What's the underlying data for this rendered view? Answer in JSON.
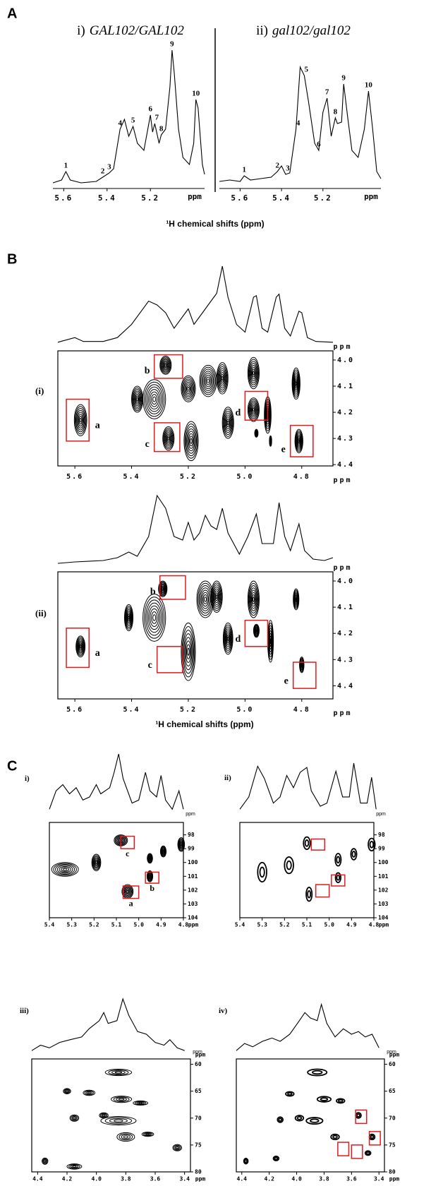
{
  "panel_labels": [
    "A",
    "B",
    "C"
  ],
  "xlabels": [
    "¹H chemical shifts (ppm)",
    "¹H chemical shifts (ppm)"
  ],
  "chart_data": [
    {
      "type": "line",
      "label": "i)",
      "title": "GAL102/GAL102",
      "x": [
        5.65,
        5.61,
        5.59,
        5.57,
        5.52,
        5.45,
        5.42,
        5.39,
        5.37,
        5.34,
        5.32,
        5.3,
        5.28,
        5.26,
        5.23,
        5.2,
        5.19,
        5.18,
        5.16,
        5.15,
        5.13,
        5.11,
        5.1,
        5.09,
        5.07,
        5.05,
        5.02,
        5.0,
        4.99,
        4.98,
        4.96,
        4.95
      ],
      "values": [
        2,
        4,
        10,
        4,
        2,
        3,
        6,
        9,
        12,
        40,
        47,
        35,
        42,
        30,
        25,
        50,
        38,
        44,
        30,
        36,
        40,
        70,
        96,
        80,
        40,
        20,
        15,
        30,
        61,
        55,
        15,
        8
      ],
      "xlim": [
        5.65,
        4.95
      ],
      "ylim": [
        0,
        100
      ],
      "xticks": [
        5.6,
        5.4,
        5.2
      ],
      "xunit": "ppm",
      "peaks": {
        "x": [
          5.59,
          5.42,
          5.39,
          5.34,
          5.28,
          5.2,
          5.17,
          5.15,
          5.1,
          4.99
        ],
        "labels": [
          1,
          2,
          3,
          4,
          5,
          6,
          7,
          8,
          9,
          10
        ]
      }
    },
    {
      "type": "line",
      "label": "ii)",
      "title": "gal102/gal102",
      "x": [
        5.7,
        5.65,
        5.6,
        5.58,
        5.55,
        5.5,
        5.45,
        5.42,
        5.4,
        5.38,
        5.36,
        5.33,
        5.31,
        5.29,
        5.27,
        5.24,
        5.22,
        5.2,
        5.18,
        5.16,
        5.14,
        5.13,
        5.11,
        5.1,
        5.08,
        5.06,
        5.03,
        5.0,
        4.98,
        4.96,
        4.94,
        4.92
      ],
      "values": [
        3,
        4,
        3,
        7,
        4,
        5,
        6,
        10,
        14,
        8,
        9,
        40,
        84,
        78,
        60,
        30,
        25,
        52,
        62,
        35,
        48,
        44,
        45,
        72,
        48,
        25,
        20,
        40,
        67,
        40,
        10,
        5
      ],
      "xlim": [
        5.7,
        4.92
      ],
      "ylim": [
        0,
        100
      ],
      "xticks": [
        5.6,
        5.4,
        5.2
      ],
      "xunit": "ppm",
      "peaks": {
        "x": [
          5.58,
          5.42,
          5.37,
          5.32,
          5.28,
          5.22,
          5.18,
          5.14,
          5.1,
          4.98
        ],
        "labels": [
          1,
          2,
          3,
          4,
          5,
          6,
          7,
          8,
          9,
          10
        ]
      }
    },
    {
      "type": "line",
      "x": [
        5.66,
        5.6,
        5.57,
        5.5,
        5.45,
        5.4,
        5.34,
        5.31,
        5.28,
        5.25,
        5.21,
        5.2,
        5.18,
        5.15,
        5.13,
        5.1,
        5.08,
        5.06,
        5.03,
        5.0,
        4.97,
        4.96,
        4.94,
        4.92,
        4.89,
        4.88,
        4.86,
        4.84,
        4.81,
        4.8,
        4.78,
        4.75,
        4.69
      ],
      "values": [
        2,
        8,
        3,
        3,
        8,
        25,
        55,
        50,
        40,
        20,
        40,
        45,
        25,
        40,
        50,
        65,
        100,
        60,
        25,
        15,
        60,
        62,
        20,
        15,
        60,
        64,
        20,
        10,
        42,
        40,
        8,
        3,
        2
      ],
      "xlim": [
        5.66,
        4.69
      ],
      "ylim": [
        0,
        100
      ]
    },
    {
      "type": "contour",
      "label": "(i)",
      "xlim": [
        5.66,
        4.69
      ],
      "ylim": [
        3.965,
        4.405
      ],
      "xticks": [
        5.6,
        5.4,
        5.2,
        {
          "value": 5,
          "label": "5.0"
        },
        4.8
      ],
      "yticks": [
        {
          "value": 4,
          "label": "4.0"
        },
        4.1,
        4.2,
        4.3,
        4.4
      ],
      "xunit": "ppm",
      "yunit": "ppm",
      "levels": 8,
      "peaks": {
        "x": [
          5.58,
          5.38,
          5.32,
          5.28,
          5.27,
          5.2,
          5.19,
          5.13,
          5.08,
          5.06,
          4.97,
          4.97,
          4.92,
          4.96,
          4.91,
          4.82,
          4.81
        ],
        "y": [
          4.23,
          4.15,
          4.15,
          4.02,
          4.3,
          4.11,
          4.31,
          4.08,
          4.07,
          4.24,
          4.05,
          4.19,
          4.21,
          4.28,
          4.31,
          4.09,
          4.31
        ],
        "rx": [
          0.022,
          0.02,
          0.04,
          0.02,
          0.02,
          0.025,
          0.025,
          0.03,
          0.02,
          0.02,
          0.02,
          0.02,
          0.012,
          0.006,
          0.004,
          0.014,
          0.014
        ],
        "ry": [
          0.06,
          0.05,
          0.075,
          0.035,
          0.045,
          0.05,
          0.075,
          0.06,
          0.06,
          0.06,
          0.06,
          0.045,
          0.07,
          0.015,
          0.02,
          0.06,
          0.045
        ]
      },
      "boxes": [
        {
          "x": [
            5.63,
            5.55
          ],
          "y": [
            4.15,
            4.31
          ],
          "label": "a"
        },
        {
          "x": [
            5.32,
            5.22
          ],
          "y": [
            3.98,
            4.07
          ],
          "label": "b"
        },
        {
          "x": [
            5.32,
            5.23
          ],
          "y": [
            4.24,
            4.35
          ],
          "label": "c"
        },
        {
          "x": [
            5.0,
            4.92
          ],
          "y": [
            4.12,
            4.23
          ],
          "label": "d"
        },
        {
          "x": [
            4.84,
            4.76
          ],
          "y": [
            4.25,
            4.37
          ],
          "label": "e"
        }
      ]
    },
    {
      "type": "line",
      "x": [
        5.66,
        5.6,
        5.5,
        5.45,
        5.41,
        5.38,
        5.34,
        5.31,
        5.28,
        5.25,
        5.22,
        5.2,
        5.18,
        5.16,
        5.14,
        5.12,
        5.1,
        5.08,
        5.06,
        5.02,
        4.99,
        4.96,
        4.94,
        4.9,
        4.88,
        4.86,
        4.84,
        4.81,
        4.79,
        4.76,
        4.72,
        4.69
      ],
      "values": [
        2,
        4,
        6,
        10,
        18,
        12,
        40,
        98,
        80,
        40,
        35,
        60,
        35,
        45,
        70,
        55,
        50,
        80,
        45,
        15,
        40,
        72,
        30,
        30,
        88,
        40,
        20,
        58,
        20,
        8,
        6,
        10
      ],
      "xlim": [
        5.66,
        4.69
      ],
      "ylim": [
        0,
        100
      ]
    },
    {
      "type": "contour",
      "label": "(ii)",
      "xlim": [
        5.66,
        4.69
      ],
      "ylim": [
        3.965,
        4.45
      ],
      "xticks": [
        5.6,
        5.4,
        5.2,
        {
          "value": 5,
          "label": "5.0"
        },
        4.8
      ],
      "yticks": [
        {
          "value": 4,
          "label": "4.0"
        },
        4.1,
        4.2,
        4.3,
        4.4
      ],
      "xunit": "ppm",
      "yunit": "ppm",
      "levels": 8,
      "peaks": {
        "x": [
          5.58,
          5.41,
          5.32,
          5.29,
          5.2,
          5.14,
          5.1,
          5.06,
          4.97,
          4.96,
          4.91,
          4.82,
          4.8
        ],
        "y": [
          4.25,
          4.14,
          4.14,
          4.03,
          4.27,
          4.07,
          4.06,
          4.22,
          4.07,
          4.19,
          4.23,
          4.07,
          4.32
        ],
        "rx": [
          0.016,
          0.015,
          0.04,
          0.015,
          0.025,
          0.03,
          0.02,
          0.017,
          0.02,
          0.01,
          0.01,
          0.01,
          0.008
        ],
        "ry": [
          0.04,
          0.05,
          0.09,
          0.03,
          0.11,
          0.07,
          0.06,
          0.06,
          0.07,
          0.025,
          0.08,
          0.04,
          0.03
        ]
      },
      "boxes": [
        {
          "x": [
            5.63,
            5.55
          ],
          "y": [
            4.18,
            4.33
          ],
          "label": "a"
        },
        {
          "x": [
            5.3,
            5.21
          ],
          "y": [
            3.98,
            4.07
          ],
          "label": "b"
        },
        {
          "x": [
            5.31,
            5.22
          ],
          "y": [
            4.25,
            4.35
          ],
          "label": "c"
        },
        {
          "x": [
            5.0,
            4.92
          ],
          "y": [
            4.15,
            4.25
          ],
          "label": "d"
        },
        {
          "x": [
            4.83,
            4.75
          ],
          "y": [
            4.31,
            4.41
          ],
          "label": "e"
        }
      ]
    },
    {
      "type": "line",
      "label": "i)",
      "x": [
        5.4,
        5.37,
        5.34,
        5.31,
        5.28,
        5.25,
        5.22,
        5.19,
        5.17,
        5.13,
        5.11,
        5.09,
        5.07,
        5.03,
        5.0,
        4.97,
        4.95,
        4.92,
        4.9,
        4.88,
        4.85,
        4.82,
        4.8
      ],
      "values": [
        10,
        40,
        50,
        35,
        45,
        25,
        30,
        50,
        35,
        45,
        70,
        100,
        60,
        20,
        25,
        70,
        40,
        30,
        65,
        25,
        10,
        40,
        10
      ],
      "xlim": [
        5.4,
        4.8
      ],
      "ylim": [
        0,
        100
      ],
      "xunit": "ppm"
    },
    {
      "type": "contour",
      "xlim": [
        5.4,
        4.8
      ],
      "ylim": [
        97.1,
        104
      ],
      "xticks": [
        5.4,
        5.3,
        5.2,
        5.1,
        {
          "value": 5,
          "label": "5.0"
        },
        4.9,
        4.8
      ],
      "yticks": [
        98,
        99,
        100,
        101,
        102,
        103,
        104
      ],
      "xunit": "ppm",
      "levels": 7,
      "peaks": {
        "x": [
          5.33,
          5.19,
          5.08,
          5.05,
          4.95,
          4.95,
          4.89,
          4.81
        ],
        "y": [
          100.5,
          100.0,
          98.4,
          102.1,
          99.7,
          101.0,
          99.2,
          98.7
        ],
        "rx": [
          0.06,
          0.02,
          0.03,
          0.025,
          0.012,
          0.013,
          0.013,
          0.015
        ],
        "ry": [
          0.5,
          0.6,
          0.4,
          0.5,
          0.35,
          0.4,
          0.4,
          0.5
        ]
      },
      "boxes": [
        {
          "x": [
            5.08,
            5.02
          ],
          "y": [
            98.1,
            99.0
          ],
          "label": "c"
        },
        {
          "x": [
            4.97,
            4.91
          ],
          "y": [
            100.7,
            101.5
          ],
          "label": "b"
        },
        {
          "x": [
            5.07,
            5.0
          ],
          "y": [
            101.7,
            102.6
          ],
          "label": "a"
        }
      ]
    },
    {
      "type": "line",
      "label": "ii)",
      "x": [
        5.4,
        5.36,
        5.32,
        5.29,
        5.25,
        5.22,
        5.19,
        5.16,
        5.13,
        5.1,
        5.08,
        5.04,
        5.01,
        4.97,
        4.94,
        4.91,
        4.89,
        4.86,
        4.83,
        4.81,
        4.79
      ],
      "values": [
        10,
        30,
        80,
        60,
        20,
        30,
        65,
        45,
        70,
        78,
        40,
        15,
        20,
        72,
        30,
        30,
        85,
        20,
        20,
        62,
        10
      ],
      "xlim": [
        5.4,
        4.8
      ],
      "ylim": [
        0,
        100
      ],
      "xunit": "ppm"
    },
    {
      "type": "contour",
      "xlim": [
        5.4,
        4.8
      ],
      "ylim": [
        97.1,
        104
      ],
      "xticks": [
        5.4,
        5.3,
        5.2,
        5.1,
        {
          "value": 5,
          "label": "5.0"
        },
        4.9,
        4.8
      ],
      "yticks": [
        98,
        99,
        100,
        101,
        102,
        103,
        104
      ],
      "xunit": "ppm",
      "levels": 2,
      "peaks": {
        "x": [
          5.3,
          5.18,
          5.1,
          5.09,
          4.96,
          4.96,
          4.89,
          4.81
        ],
        "y": [
          100.7,
          100.2,
          98.6,
          102.3,
          99.8,
          101.1,
          99.4,
          98.7
        ],
        "rx": [
          0.02,
          0.02,
          0.015,
          0.013,
          0.013,
          0.012,
          0.013,
          0.015
        ],
        "ry": [
          0.7,
          0.6,
          0.45,
          0.5,
          0.45,
          0.35,
          0.4,
          0.45
        ]
      },
      "boxes": [
        {
          "x": [
            5.08,
            5.02
          ],
          "y": [
            98.3,
            99.1
          ]
        },
        {
          "x": [
            4.99,
            4.93
          ],
          "y": [
            100.9,
            101.7
          ]
        },
        {
          "x": [
            5.06,
            5.0
          ],
          "y": [
            101.6,
            102.5
          ]
        }
      ]
    },
    {
      "type": "line",
      "label": "iii)",
      "x": [
        4.44,
        4.38,
        4.32,
        4.25,
        4.18,
        4.1,
        4.05,
        3.98,
        3.95,
        3.92,
        3.86,
        3.82,
        3.78,
        3.72,
        3.66,
        3.6,
        3.54,
        3.5,
        3.45,
        3.4
      ],
      "values": [
        5,
        15,
        10,
        20,
        25,
        30,
        45,
        60,
        75,
        55,
        60,
        100,
        70,
        40,
        35,
        20,
        15,
        25,
        10,
        5
      ],
      "xlim": [
        4.44,
        3.36
      ],
      "ylim": [
        0,
        100
      ],
      "xunit": "ppm"
    },
    {
      "type": "contour",
      "xlim": [
        4.44,
        3.36
      ],
      "ylim": [
        59,
        80
      ],
      "xticks": [
        4.4,
        4.2,
        {
          "value": 4,
          "label": "4.0"
        },
        3.8,
        3.6,
        3.4
      ],
      "yticks": [
        60,
        65,
        70,
        75,
        80
      ],
      "xunit": "ppm",
      "yunit": "ppm",
      "levels": 4,
      "peaks": {
        "x": [
          3.85,
          3.83,
          3.7,
          4.05,
          4.2,
          3.85,
          3.95,
          4.15,
          3.8,
          3.65,
          3.45,
          4.35,
          4.15
        ],
        "y": [
          61.5,
          66.5,
          67.2,
          65.3,
          65.0,
          70.5,
          69.5,
          70.0,
          73.5,
          73.0,
          75.5,
          78.0,
          79.0
        ],
        "rx": [
          0.09,
          0.07,
          0.05,
          0.04,
          0.025,
          0.12,
          0.03,
          0.03,
          0.06,
          0.04,
          0.03,
          0.02,
          0.05
        ],
        "ry": [
          0.6,
          0.6,
          0.4,
          0.5,
          0.5,
          0.8,
          0.5,
          0.6,
          0.8,
          0.4,
          0.6,
          0.6,
          0.5
        ]
      }
    },
    {
      "type": "line",
      "label": "iv)",
      "x": [
        4.44,
        4.38,
        4.32,
        4.25,
        4.18,
        4.12,
        4.05,
        3.98,
        3.94,
        3.9,
        3.85,
        3.82,
        3.78,
        3.72,
        3.66,
        3.6,
        3.55,
        3.5,
        3.45,
        3.4
      ],
      "values": [
        5,
        18,
        12,
        22,
        28,
        22,
        35,
        60,
        75,
        65,
        60,
        90,
        55,
        30,
        45,
        35,
        40,
        30,
        35,
        10
      ],
      "xlim": [
        4.44,
        3.36
      ],
      "ylim": [
        0,
        100
      ],
      "xunit": "ppm"
    },
    {
      "type": "contour",
      "xlim": [
        4.44,
        3.36
      ],
      "ylim": [
        59,
        80
      ],
      "xticks": [
        4.4,
        4.2,
        {
          "value": 4,
          "label": "4.0"
        },
        3.8,
        3.6,
        3.4
      ],
      "yticks": [
        60,
        65,
        70,
        75,
        80
      ],
      "xunit": "ppm",
      "yunit": "ppm",
      "levels": 2,
      "peaks": {
        "x": [
          3.85,
          3.8,
          3.68,
          4.05,
          3.87,
          3.98,
          4.12,
          3.72,
          3.55,
          3.45,
          3.48,
          4.37,
          4.15
        ],
        "y": [
          61.5,
          66.5,
          66.8,
          65.5,
          70.5,
          70.0,
          70.3,
          73.5,
          69.5,
          73.5,
          76.5,
          78.0,
          77.5
        ],
        "rx": [
          0.07,
          0.05,
          0.03,
          0.03,
          0.06,
          0.03,
          0.02,
          0.03,
          0.02,
          0.02,
          0.02,
          0.015,
          0.02
        ],
        "ry": [
          0.6,
          0.5,
          0.4,
          0.4,
          0.6,
          0.5,
          0.5,
          0.5,
          0.5,
          0.5,
          0.4,
          0.5,
          0.4
        ]
      },
      "boxes": [
        {
          "x": [
            3.57,
            3.49
          ],
          "y": [
            68.5,
            71.0
          ]
        },
        {
          "x": [
            3.47,
            3.39
          ],
          "y": [
            72.5,
            75.0
          ]
        },
        {
          "x": [
            3.7,
            3.62
          ],
          "y": [
            74.5,
            77.0
          ]
        },
        {
          "x": [
            3.6,
            3.52
          ],
          "y": [
            75.0,
            77.5
          ]
        }
      ]
    }
  ]
}
